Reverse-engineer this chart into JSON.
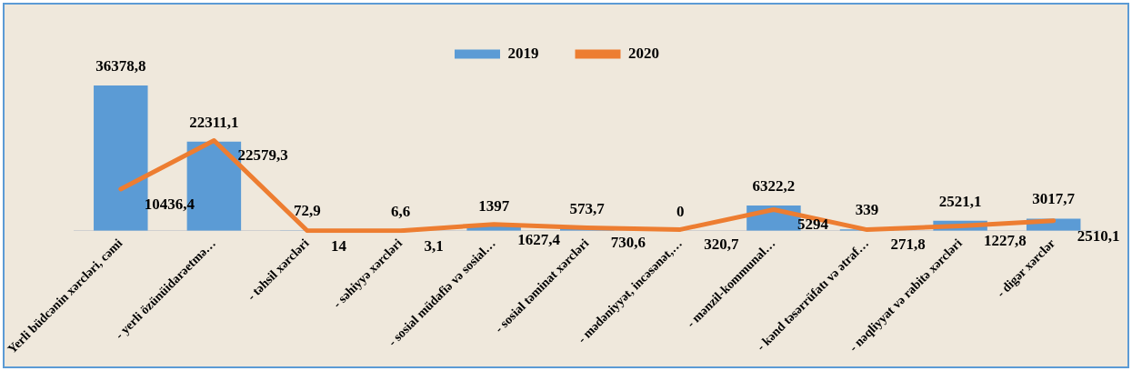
{
  "chart_data": {
    "type": "bar",
    "categories": [
      "Yerli büdcənin xərcləri, cəmi",
      "- yerli özünüidarəetmə…",
      "- təhsil xərcləri",
      "- səhiyyə xərcləri",
      "- sosial müdafiə və sosial…",
      "- sosial təminat xərcləri",
      "- mədəniyyət, incəsənət,…",
      "- mənzil-kommunal…",
      "- kənd təsərrüfatı və ətraf…",
      "- nəqliyyat və rabitə xərcləri",
      "- digər xərclər"
    ],
    "series": [
      {
        "name": "2019",
        "color": "#5b9bd5",
        "values": [
          36378.8,
          22311.1,
          72.9,
          6.6,
          1397,
          573.7,
          0,
          6322.2,
          339,
          2521.1,
          3017.7
        ],
        "value_labels": [
          "36378,8",
          "22311,1",
          "72,9",
          "6,6",
          "1397",
          "573,7",
          "0",
          "6322,2",
          "339",
          "2521,1",
          "3017,7"
        ]
      },
      {
        "name": "2020",
        "type": "line",
        "color": "#ed7d31",
        "values": [
          10436.4,
          22579.3,
          14,
          3.1,
          1627.4,
          730.6,
          320.7,
          5294,
          271.8,
          1227.8,
          2510.1
        ],
        "value_labels": [
          "10436,4",
          "22579,3",
          "14",
          "3,1",
          "1627,4",
          "730,6",
          "320,7",
          "5294",
          "271,8",
          "1227,8",
          "2510,1"
        ]
      }
    ],
    "legend": "top",
    "marker": "none",
    "grid": false
  }
}
